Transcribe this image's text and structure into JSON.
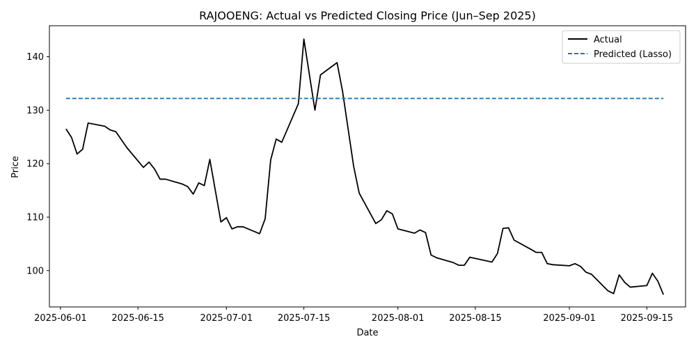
{
  "chart_data": {
    "type": "line",
    "title": "RAJOOENG: Actual vs Predicted Closing Price (Jun–Sep 2025)",
    "xlabel": "Date",
    "ylabel": "Price",
    "xlim": [
      "2025-05-30",
      "2025-09-22"
    ],
    "ylim": [
      93.2,
      145.8
    ],
    "x_ticks": [
      "2025-06-01",
      "2025-06-15",
      "2025-07-01",
      "2025-07-15",
      "2025-08-01",
      "2025-08-15",
      "2025-09-01",
      "2025-09-15"
    ],
    "y_ticks": [
      100,
      110,
      120,
      130,
      140
    ],
    "grid": false,
    "legend_position": "top-right",
    "series": [
      {
        "name": "Actual",
        "color": "#000000",
        "style": "solid",
        "points": [
          [
            "2025-06-02",
            126.5
          ],
          [
            "2025-06-03",
            124.9
          ],
          [
            "2025-06-04",
            121.8
          ],
          [
            "2025-06-05",
            122.7
          ],
          [
            "2025-06-06",
            127.6
          ],
          [
            "2025-06-09",
            127.0
          ],
          [
            "2025-06-10",
            126.3
          ],
          [
            "2025-06-11",
            126.0
          ],
          [
            "2025-06-13",
            123.0
          ],
          [
            "2025-06-16",
            119.3
          ],
          [
            "2025-06-17",
            120.3
          ],
          [
            "2025-06-18",
            119.0
          ],
          [
            "2025-06-19",
            117.1
          ],
          [
            "2025-06-20",
            117.1
          ],
          [
            "2025-06-23",
            116.2
          ],
          [
            "2025-06-24",
            115.7
          ],
          [
            "2025-06-25",
            114.3
          ],
          [
            "2025-06-26",
            116.4
          ],
          [
            "2025-06-27",
            115.9
          ],
          [
            "2025-06-28",
            120.8
          ],
          [
            "2025-06-30",
            109.1
          ],
          [
            "2025-07-01",
            109.9
          ],
          [
            "2025-07-02",
            107.8
          ],
          [
            "2025-07-03",
            108.2
          ],
          [
            "2025-07-04",
            108.2
          ],
          [
            "2025-07-07",
            106.9
          ],
          [
            "2025-07-08",
            109.7
          ],
          [
            "2025-07-09",
            120.7
          ],
          [
            "2025-07-10",
            124.6
          ],
          [
            "2025-07-11",
            124.0
          ],
          [
            "2025-07-14",
            131.2
          ],
          [
            "2025-07-15",
            143.3
          ],
          [
            "2025-07-17",
            130.0
          ],
          [
            "2025-07-18",
            136.6
          ],
          [
            "2025-07-21",
            138.9
          ],
          [
            "2025-07-22",
            133.5
          ],
          [
            "2025-07-24",
            119.5
          ],
          [
            "2025-07-25",
            114.5
          ],
          [
            "2025-07-28",
            108.8
          ],
          [
            "2025-07-29",
            109.5
          ],
          [
            "2025-07-30",
            111.2
          ],
          [
            "2025-07-31",
            110.6
          ],
          [
            "2025-08-01",
            107.8
          ],
          [
            "2025-08-04",
            107.0
          ],
          [
            "2025-08-05",
            107.6
          ],
          [
            "2025-08-06",
            107.1
          ],
          [
            "2025-08-07",
            102.9
          ],
          [
            "2025-08-08",
            102.4
          ],
          [
            "2025-08-11",
            101.5
          ],
          [
            "2025-08-12",
            101.0
          ],
          [
            "2025-08-13",
            101.0
          ],
          [
            "2025-08-14",
            102.5
          ],
          [
            "2025-08-18",
            101.6
          ],
          [
            "2025-08-19",
            103.2
          ],
          [
            "2025-08-20",
            107.9
          ],
          [
            "2025-08-21",
            108.0
          ],
          [
            "2025-08-22",
            105.7
          ],
          [
            "2025-08-25",
            104.0
          ],
          [
            "2025-08-26",
            103.4
          ],
          [
            "2025-08-27",
            103.4
          ],
          [
            "2025-08-28",
            101.3
          ],
          [
            "2025-08-29",
            101.1
          ],
          [
            "2025-09-01",
            100.9
          ],
          [
            "2025-09-02",
            101.3
          ],
          [
            "2025-09-03",
            100.8
          ],
          [
            "2025-09-04",
            99.7
          ],
          [
            "2025-09-05",
            99.3
          ],
          [
            "2025-09-08",
            96.2
          ],
          [
            "2025-09-09",
            95.7
          ],
          [
            "2025-09-10",
            99.2
          ],
          [
            "2025-09-11",
            97.8
          ],
          [
            "2025-09-12",
            96.9
          ],
          [
            "2025-09-15",
            97.2
          ],
          [
            "2025-09-16",
            99.5
          ],
          [
            "2025-09-17",
            98.0
          ],
          [
            "2025-09-18",
            95.5
          ]
        ]
      },
      {
        "name": "Predicted (Lasso)",
        "color": "#1f77b4",
        "style": "dashed",
        "points": [
          [
            "2025-06-02",
            132.2
          ],
          [
            "2025-09-18",
            132.2
          ]
        ]
      }
    ]
  }
}
